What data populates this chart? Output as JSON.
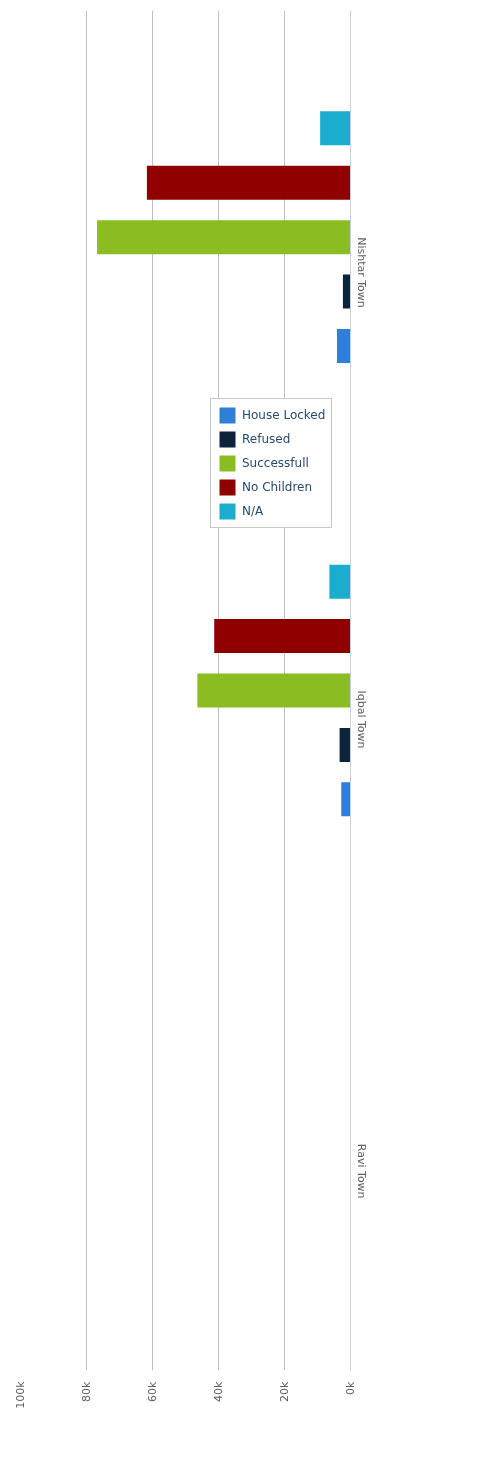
{
  "chart_data": {
    "type": "bar",
    "orientation": "horizontal",
    "categories": [
      "Nishtar Town",
      "Iqbal Town",
      "Ravi Town"
    ],
    "series": [
      {
        "name": "House Locked",
        "color": "#2f7ed8",
        "values": [
          4100,
          2800,
          0
        ]
      },
      {
        "name": "Refused",
        "color": "#0d233a",
        "values": [
          2300,
          3300,
          0
        ]
      },
      {
        "name": "Successfull",
        "color": "#8bbc21",
        "values": [
          76800,
          46400,
          0
        ]
      },
      {
        "name": "No Children",
        "color": "#910000",
        "values": [
          61700,
          41300,
          0
        ]
      },
      {
        "name": "N/A",
        "color": "#1aadce",
        "values": [
          9200,
          6400,
          0
        ]
      }
    ],
    "xlim": [
      100000,
      0
    ],
    "xticks": [
      {
        "value": 0,
        "label": "0k"
      },
      {
        "value": 20000,
        "label": "20k"
      },
      {
        "value": 40000,
        "label": "40k"
      },
      {
        "value": 60000,
        "label": "60k"
      },
      {
        "value": 80000,
        "label": "80k"
      },
      {
        "value": 100000,
        "label": "100k"
      }
    ],
    "grid": "x",
    "legend": "right"
  }
}
